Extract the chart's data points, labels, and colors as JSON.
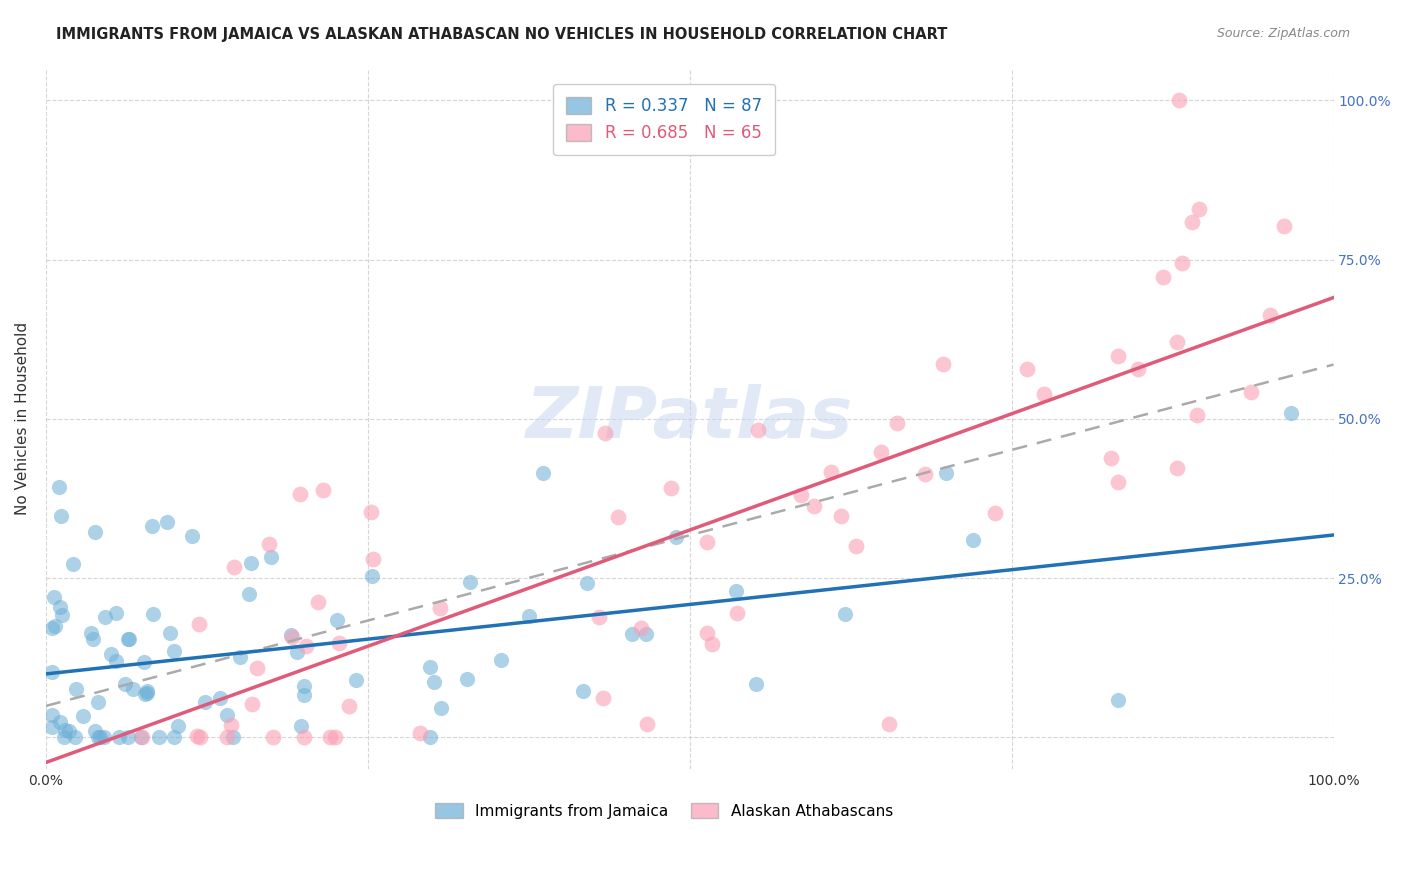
{
  "title": "IMMIGRANTS FROM JAMAICA VS ALASKAN ATHABASCAN NO VEHICLES IN HOUSEHOLD CORRELATION CHART",
  "source": "Source: ZipAtlas.com",
  "ylabel": "No Vehicles in Household",
  "r_blue": 0.337,
  "n_blue": 87,
  "r_pink": 0.685,
  "n_pink": 65,
  "blue_color": "#6baed6",
  "pink_color": "#fa9fb5",
  "blue_line_color": "#2171b5",
  "pink_line_color": "#e05a7a",
  "legend_label_blue": "Immigrants from Jamaica",
  "legend_label_pink": "Alaskan Athabascans",
  "right_tick_color": "#4472c4",
  "background_color": "#ffffff",
  "grid_color": "#cccccc"
}
